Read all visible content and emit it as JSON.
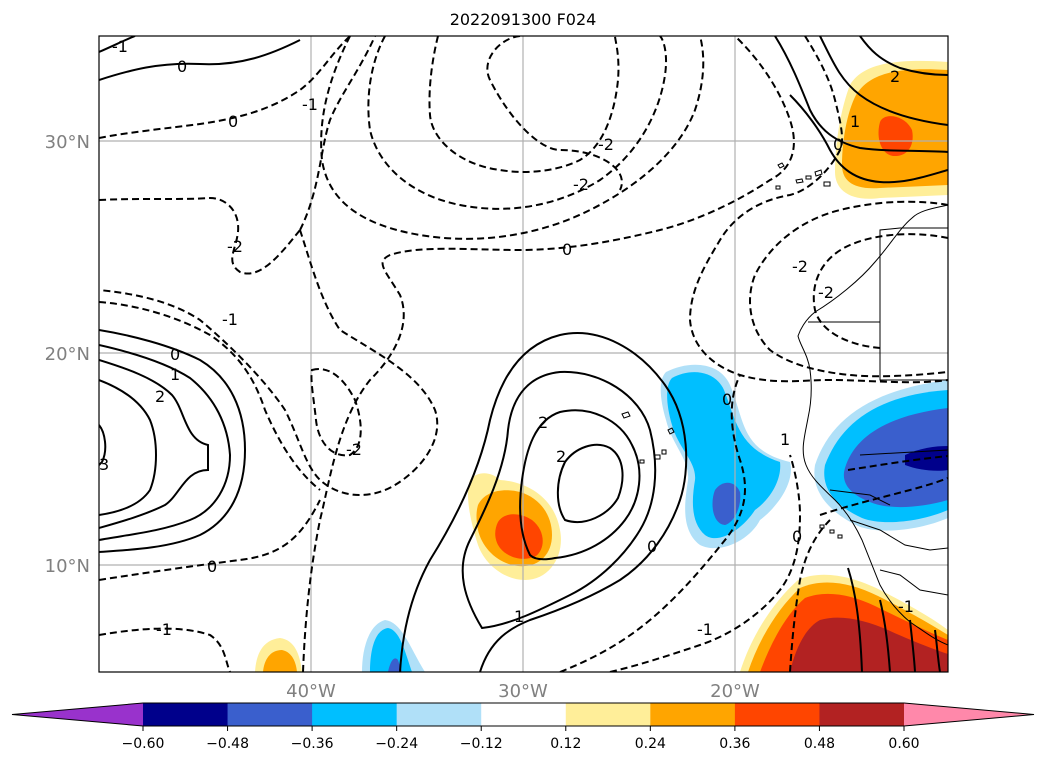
{
  "chart_data": {
    "type": "heatmap",
    "title": "2022091300 F024",
    "xlabel": "",
    "ylabel": "",
    "map_extent": {
      "lon_range": [
        -50,
        -10
      ],
      "lat_range": [
        5,
        35
      ]
    },
    "lat_ticks": [
      {
        "value": 30,
        "label": "30°N"
      },
      {
        "value": 20,
        "label": "20°N"
      },
      {
        "value": 10,
        "label": "10°N"
      }
    ],
    "lon_ticks": [
      {
        "value": -40,
        "label": "40°W"
      },
      {
        "value": -30,
        "label": "30°W"
      },
      {
        "value": -20,
        "label": "20°W"
      }
    ],
    "grid": true,
    "colorbar": {
      "orientation": "horizontal",
      "extend": "both",
      "levels": [
        -0.6,
        -0.48,
        -0.36,
        -0.24,
        -0.12,
        0.12,
        0.24,
        0.36,
        0.48,
        0.6
      ],
      "tick_labels": [
        "−0.60",
        "−0.48",
        "−0.36",
        "−0.24",
        "−0.12",
        "0.12",
        "0.24",
        "0.36",
        "0.48",
        "0.60"
      ],
      "colors": [
        "#9932cc",
        "#00008b",
        "#3a5fcd",
        "#00bfff",
        "#b0e0f8",
        "#ffffff",
        "#ffee99",
        "#ffa500",
        "#ff4500",
        "#b22222",
        "#ff88aa"
      ]
    },
    "shaded_regions": [
      {
        "name": "NE subtropical positive",
        "center": [
          -12,
          30
        ],
        "peak": 0.4
      },
      {
        "name": "central tropical positive",
        "center": [
          -30,
          12
        ],
        "peak": 0.4
      },
      {
        "name": "NW Africa coast negative",
        "center": [
          -12,
          15
        ],
        "peak": -0.5
      },
      {
        "name": "eastern tropical negative",
        "center": [
          -21,
          15
        ],
        "peak": -0.4
      },
      {
        "name": "SE Gulf of Guinea positive",
        "center": [
          -13,
          6
        ],
        "peak": 0.55
      },
      {
        "name": "southern small positive",
        "center": [
          -42,
          5.5
        ],
        "peak": 0.3
      },
      {
        "name": "southern small negative",
        "center": [
          -36,
          5.5
        ],
        "peak": -0.4
      }
    ],
    "contour_labels": [
      "-1",
      "0",
      "0",
      "-1",
      "-2",
      "-2",
      "-2",
      "0",
      "-2",
      "-2",
      "-1",
      "0",
      "1",
      "2",
      "3",
      "-2",
      "2",
      "2",
      "0",
      "1",
      "0",
      "-1",
      "0",
      "-1",
      "0",
      "1",
      "0",
      "1",
      "-1",
      "2"
    ]
  }
}
